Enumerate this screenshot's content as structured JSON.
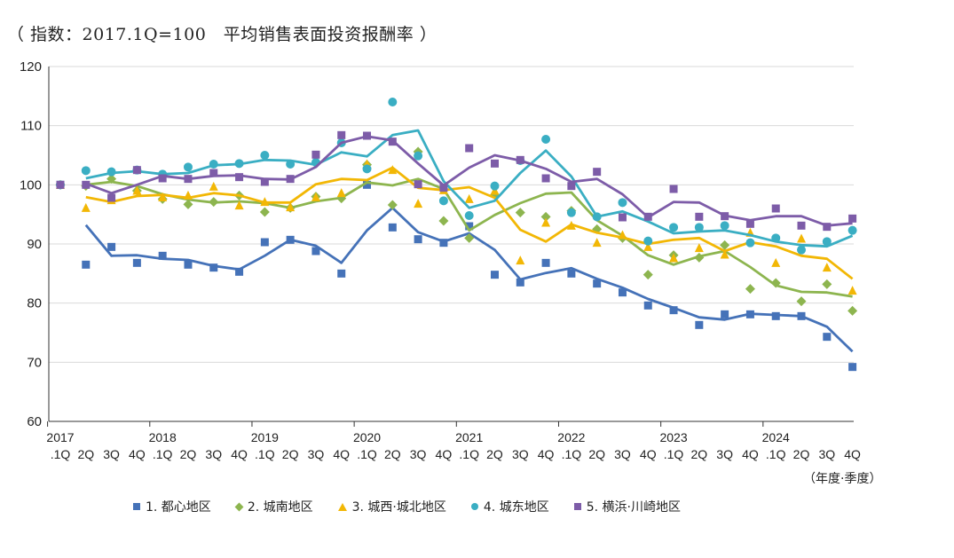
{
  "title": "（ 指数：2017.1Q=100　平均销售表面投资报酬率 ）",
  "unit_label": "（年度·季度）",
  "chart_data": {
    "type": "scatter",
    "title": "（ 指数：2017.1Q=100　平均销售表面投资报酬率 ）",
    "ylim": [
      60,
      120
    ],
    "yticks": [
      60,
      70,
      80,
      90,
      100,
      110,
      120
    ],
    "grid": true,
    "legend_position": "bottom",
    "year_labels": [
      "2017",
      "2018",
      "2019",
      "2020",
      "2021",
      "2022",
      "2023",
      "2024"
    ],
    "categories": [
      ".1Q",
      "2Q",
      "3Q",
      "4Q",
      ".1Q",
      "2Q",
      "3Q",
      "4Q",
      ".1Q",
      "2Q",
      "3Q",
      "4Q",
      ".1Q",
      "2Q",
      "3Q",
      "4Q",
      ".1Q",
      "2Q",
      "3Q",
      "4Q",
      ".1Q",
      "2Q",
      "3Q",
      "4Q",
      ".1Q",
      "2Q",
      "3Q",
      "4Q",
      ".1Q",
      "2Q",
      "3Q",
      "4Q"
    ],
    "series": [
      {
        "name": "1. 都心地区",
        "color": "#4572b8",
        "marker": "square",
        "points": [
          100,
          86.5,
          89.5,
          86.8,
          88,
          86.5,
          86,
          85.3,
          90.3,
          90.7,
          88.8,
          85,
          100,
          92.8,
          90.8,
          90.2,
          93,
          84.8,
          83.5,
          86.8,
          85,
          83.3,
          81.8,
          79.6,
          78.8,
          76.3,
          78.1,
          78.1,
          77.8,
          77.8,
          74.3,
          69.2
        ],
        "trend": [
          null,
          93.2,
          88.0,
          88.1,
          87.5,
          87.3,
          86.3,
          85.7,
          88.0,
          90.7,
          89.7,
          86.8,
          92.3,
          96.1,
          92.0,
          90.4,
          91.8,
          89.0,
          84.0,
          85.1,
          85.9,
          84.1,
          82.6,
          80.7,
          79.2,
          77.6,
          77.2,
          78.2,
          78.0,
          77.8,
          76.0,
          71.8
        ]
      },
      {
        "name": "2. 城南地区",
        "color": "#8db54f",
        "marker": "diamond",
        "points": [
          100,
          99.8,
          101,
          99,
          97.6,
          96.7,
          97.1,
          98.2,
          95.4,
          96.1,
          98,
          97.7,
          103.4,
          96.6,
          105.6,
          93.9,
          91,
          98.3,
          95.3,
          94.6,
          95.6,
          92.5,
          91,
          84.8,
          88.1,
          87.7,
          89.8,
          82.4,
          83.4,
          80.3,
          83.2,
          78.7
        ],
        "trend": [
          null,
          100.0,
          100.5,
          99.8,
          98.4,
          97.5,
          97.0,
          97.2,
          96.9,
          96.1,
          97.2,
          97.8,
          100.4,
          99.9,
          101.0,
          99.3,
          92.3,
          94.9,
          96.9,
          98.5,
          98.7,
          94.0,
          91.4,
          88.1,
          86.5,
          87.9,
          88.8,
          86.1,
          83.0,
          81.9,
          81.8,
          81.1
        ]
      },
      {
        "name": "3. 城西·城北地区",
        "color": "#f2b705",
        "marker": "triangle",
        "points": [
          100,
          96.1,
          97.4,
          99,
          97.9,
          98.2,
          99.7,
          96.5,
          97.1,
          96.2,
          97.9,
          98.6,
          103.5,
          102.5,
          96.8,
          99.1,
          97.6,
          99,
          87.2,
          93.6,
          93.1,
          90.2,
          91.5,
          89.5,
          87.6,
          89.3,
          88.2,
          91.9,
          86.8,
          90.9,
          86,
          82.1
        ],
        "trend": [
          null,
          97.9,
          97.1,
          98.1,
          98.3,
          97.8,
          98.6,
          98.2,
          97.0,
          97.0,
          100.1,
          101.0,
          100.8,
          102.9,
          99.5,
          99.1,
          99.6,
          97.8,
          92.4,
          90.4,
          93.3,
          91.9,
          91.1,
          90.0,
          90.7,
          91.0,
          88.8,
          90.3,
          89.6,
          88.0,
          87.5,
          84.1
        ]
      },
      {
        "name": "4. 城东地区",
        "color": "#3aaec3",
        "marker": "circle",
        "points": [
          100,
          102.4,
          102.2,
          102.5,
          101.8,
          103,
          103.5,
          103.6,
          105,
          103.5,
          103.8,
          107.1,
          102.7,
          114,
          104.9,
          97.3,
          94.8,
          99.8,
          104.1,
          107.7,
          95.3,
          94.6,
          97,
          90.5,
          92.8,
          92.8,
          93.1,
          90.2,
          91,
          89,
          90.4,
          92.3
        ],
        "trend": [
          null,
          101.1,
          102.0,
          102.3,
          101.8,
          102.0,
          103.3,
          103.5,
          104.2,
          104.1,
          103.4,
          105.5,
          104.8,
          108.4,
          109.2,
          100.6,
          96.1,
          97.3,
          102.0,
          105.8,
          101.4,
          94.6,
          95.5,
          93.8,
          91.8,
          92.1,
          92.3,
          91.5,
          90.4,
          89.8,
          89.6,
          91.4
        ]
      },
      {
        "name": "5. 横浜·川崎地区",
        "color": "#7d5ca8",
        "marker": "square",
        "points": [
          100,
          100,
          97.8,
          102.5,
          101.1,
          101,
          102,
          101.3,
          100.5,
          101,
          105.1,
          108.4,
          108.3,
          107.3,
          100.1,
          99.5,
          106.2,
          103.6,
          104.2,
          101.1,
          99.8,
          102.2,
          94.5,
          94.6,
          99.3,
          94.6,
          94.7,
          93.4,
          96,
          93.1,
          92.9,
          94.3
        ],
        "trend": [
          null,
          100.2,
          98.6,
          100.0,
          101.5,
          101.0,
          101.5,
          101.6,
          101.0,
          100.9,
          103.0,
          107.1,
          108.2,
          107.5,
          103.6,
          99.9,
          102.9,
          105.0,
          104.1,
          102.7,
          100.5,
          101.0,
          98.4,
          94.5,
          97.1,
          97.0,
          94.8,
          94.0,
          94.7,
          94.7,
          93.1,
          93.5
        ]
      }
    ]
  }
}
